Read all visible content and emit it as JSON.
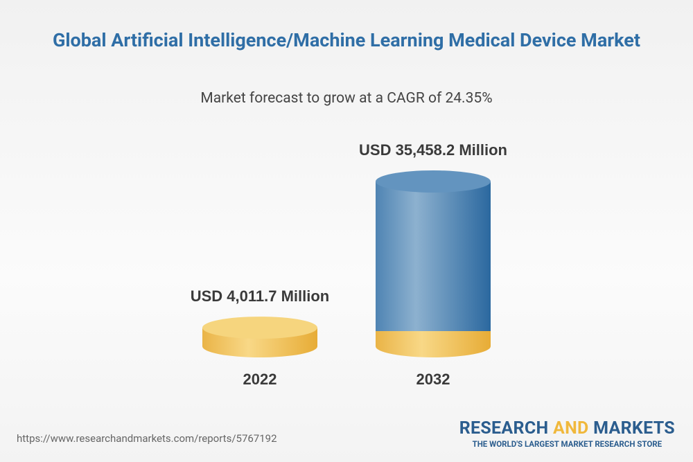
{
  "chart_data": {
    "type": "cylinder",
    "title": "Global Artificial Intelligence/Machine Learning Medical Device Market",
    "subtitle": "Market forecast to grow at a CAGR of 24.35%",
    "categories": [
      "2022",
      "2032"
    ],
    "values": [
      4011.7,
      35458.2
    ],
    "value_labels": [
      "USD 4,011.7 Million",
      "USD 35,458.2 Million"
    ],
    "colors": [
      "#f2c55c",
      "#3f78aa"
    ]
  },
  "footer": {
    "source": "https://www.researchandmarkets.com/reports/5767192",
    "brand": [
      "RESEARCH",
      "AND",
      "MARKETS"
    ],
    "tagline": "THE WORLD'S LARGEST MARKET RESEARCH STORE"
  }
}
